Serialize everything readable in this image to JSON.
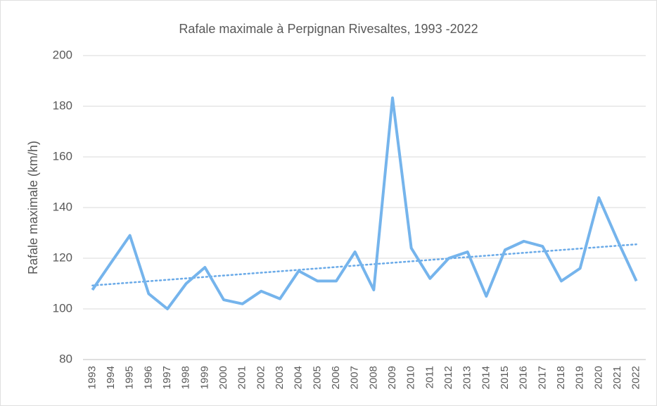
{
  "chart_data": {
    "type": "line",
    "title": "Rafale maximale à Perpignan Rivesaltes, 1993   -2022",
    "y_label": "Rafale maximale (km/h)",
    "categories": [
      "1993",
      "1994",
      "1995",
      "1996",
      "1997",
      "1998",
      "1999",
      "2000",
      "2001",
      "2002",
      "2003",
      "2004",
      "2005",
      "2006",
      "2007",
      "2008",
      "2009",
      "2010",
      "2011",
      "2012",
      "2013",
      "2014",
      "2015",
      "2016",
      "2017",
      "2018",
      "2019",
      "2020",
      "2021",
      "2022"
    ],
    "series": [
      {
        "color": "#75b4ec",
        "values": [
          107.5,
          118.3,
          129,
          106,
          100,
          110,
          116.4,
          103.6,
          102,
          107,
          104,
          115,
          111,
          111,
          122.5,
          107.5,
          183.3,
          124,
          112,
          120,
          122.5,
          105,
          123.3,
          126.7,
          124.7,
          111,
          116,
          143.9,
          127,
          111
        ]
      }
    ],
    "trendline": {
      "kind": "linear",
      "color": "#6aaae8"
    },
    "ylim": [
      80,
      200
    ],
    "yticks": [
      80,
      100,
      120,
      140,
      160,
      180,
      200
    ],
    "grid": true
  }
}
